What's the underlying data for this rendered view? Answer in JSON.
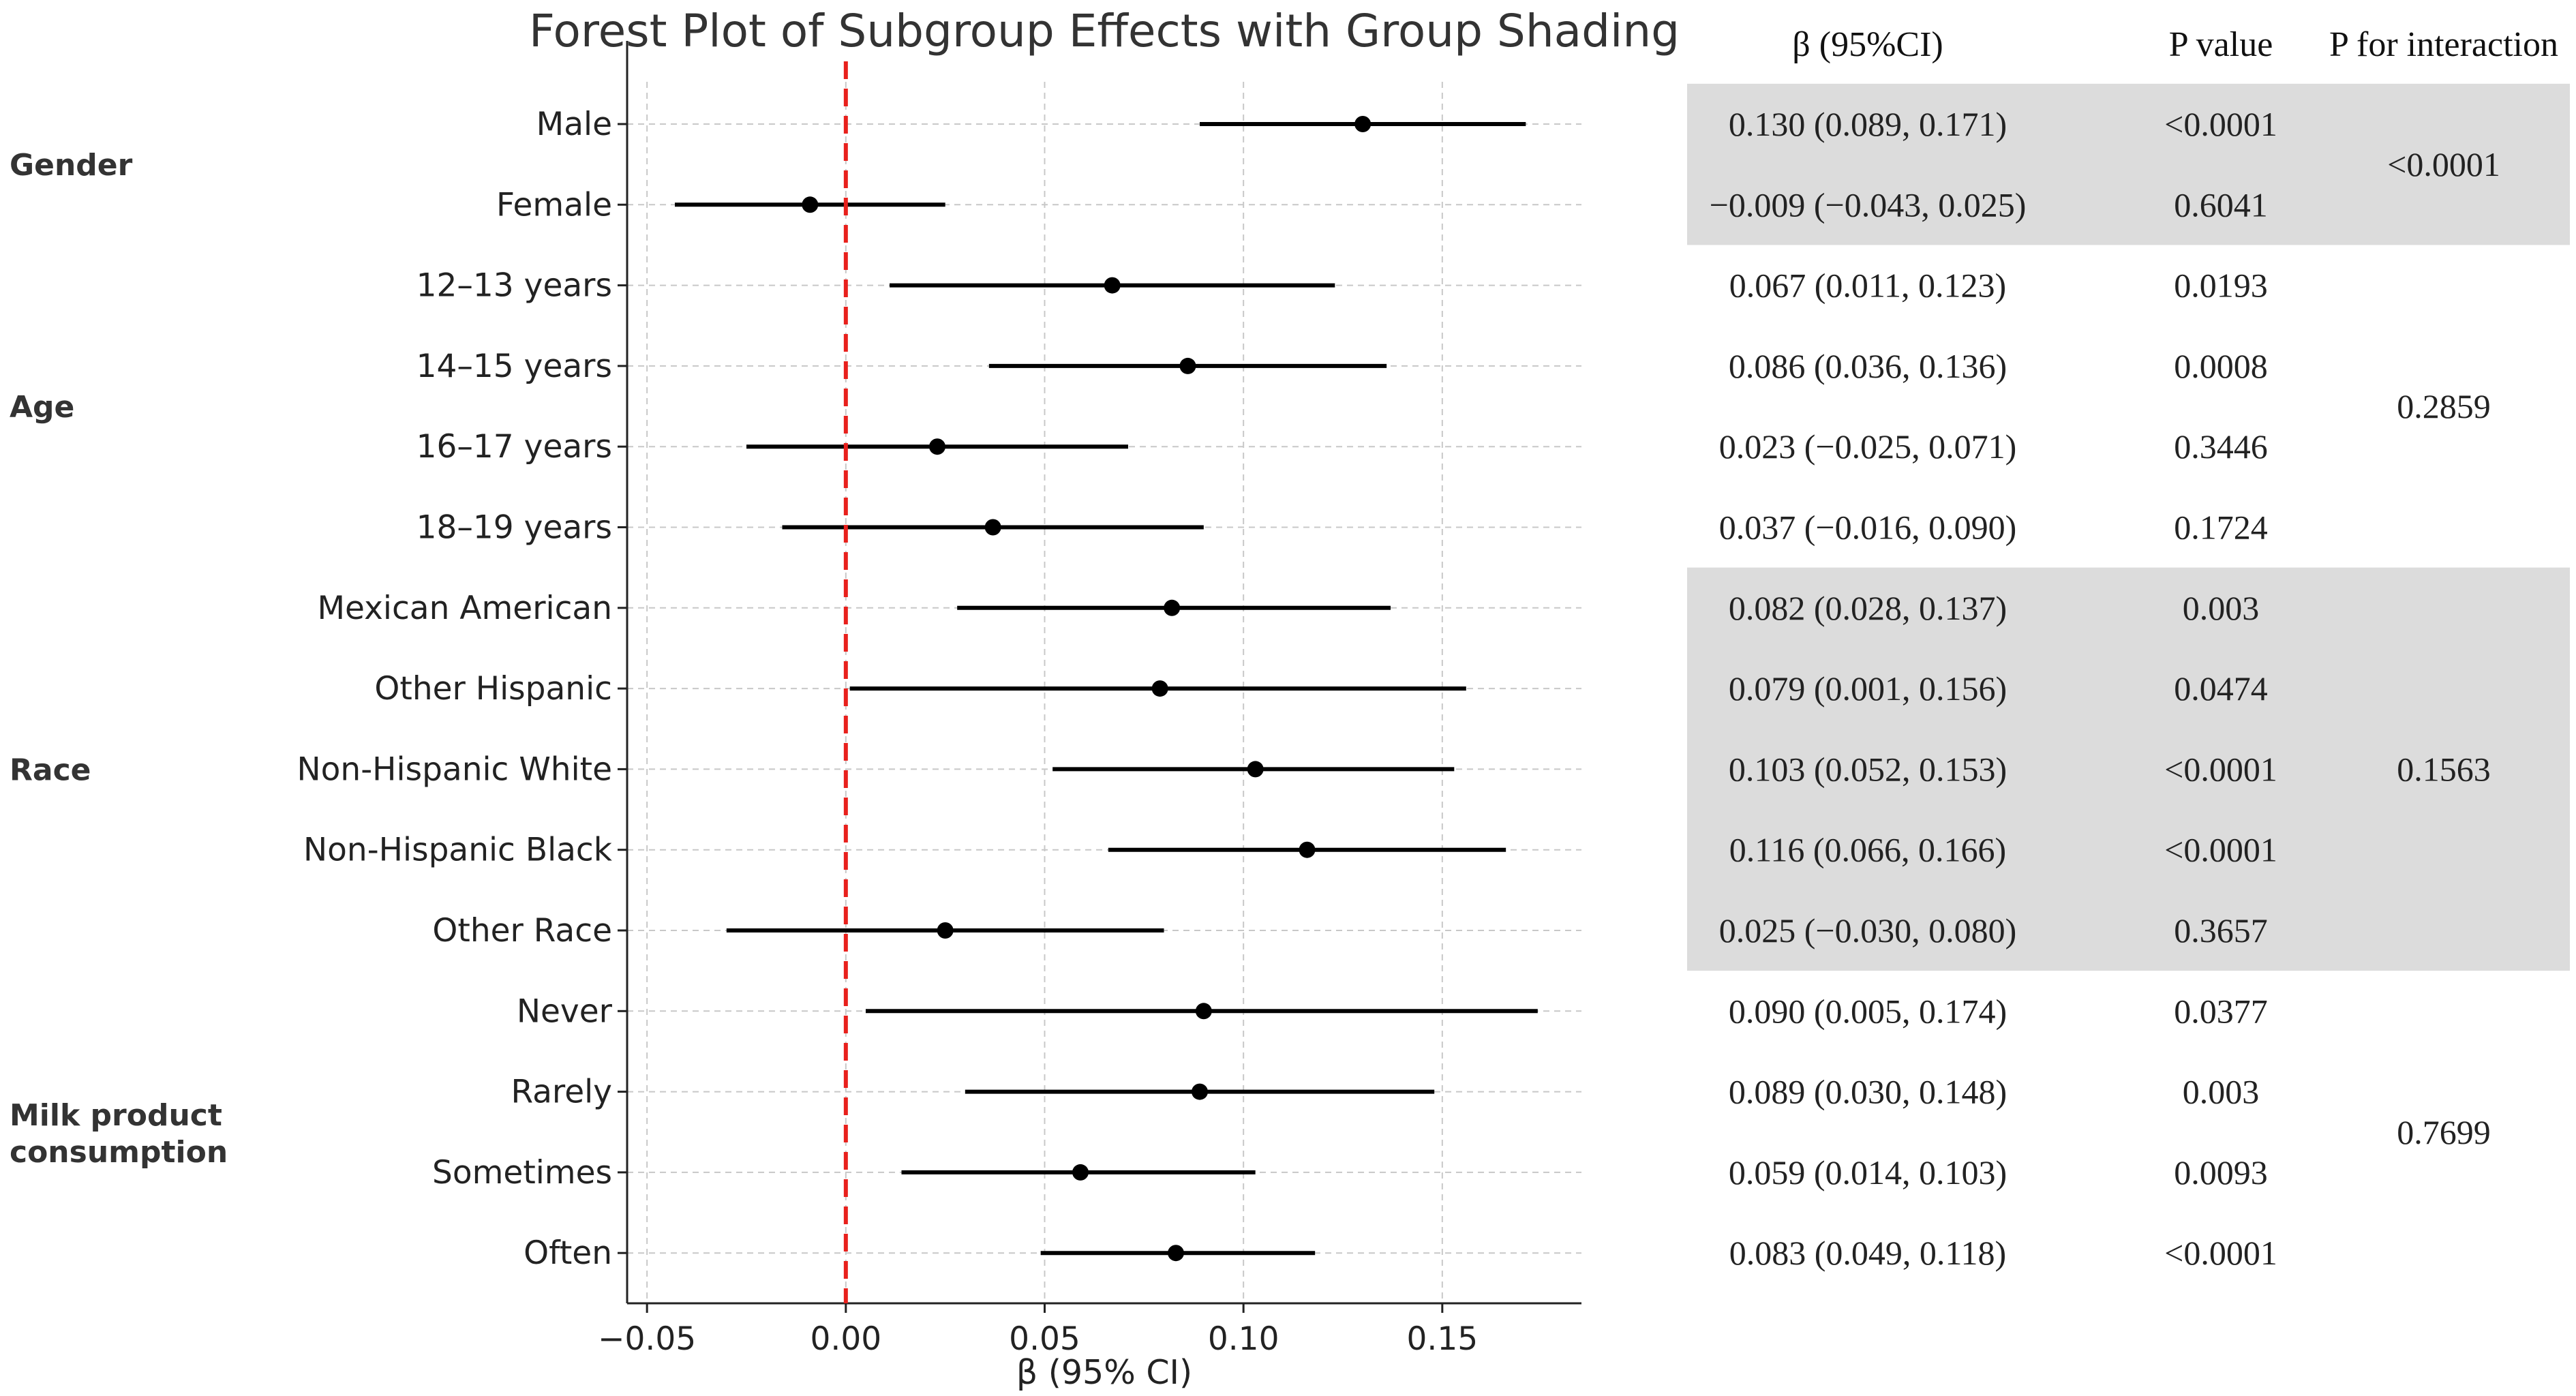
{
  "chart_data": {
    "type": "forest",
    "title": "Forest Plot of Subgroup Effects with Group Shading",
    "xlabel": "β (95% CI)",
    "xlim": [
      -0.055,
      0.185
    ],
    "xticks": [
      "−0.05",
      "0.00",
      "0.05",
      "0.10",
      "0.15"
    ],
    "xtick_values": [
      -0.05,
      0,
      0.05,
      0.1,
      0.15
    ],
    "reference_line": 0,
    "reference_color": "#e8201c",
    "shade_color": "#dcdcdc",
    "table_headers": {
      "beta": "β (95%CI)",
      "p": "P value",
      "p_interaction": "P for interaction"
    },
    "groups": [
      {
        "name": "Gender",
        "p_interaction": "<0.0001",
        "shaded": true,
        "rows": [
          {
            "label": "Male",
            "beta": 0.13,
            "lo": 0.089,
            "hi": 0.171,
            "text": "0.130 (0.089, 0.171)",
            "p": "<0.0001"
          },
          {
            "label": "Female",
            "beta": -0.009,
            "lo": -0.043,
            "hi": 0.025,
            "text": "−0.009 (−0.043, 0.025)",
            "p": "0.6041"
          }
        ]
      },
      {
        "name": "Age",
        "p_interaction": "0.2859",
        "shaded": false,
        "rows": [
          {
            "label": "12–13 years",
            "beta": 0.067,
            "lo": 0.011,
            "hi": 0.123,
            "text": "0.067 (0.011, 0.123)",
            "p": "0.0193"
          },
          {
            "label": "14–15 years",
            "beta": 0.086,
            "lo": 0.036,
            "hi": 0.136,
            "text": "0.086 (0.036, 0.136)",
            "p": "0.0008"
          },
          {
            "label": "16–17 years",
            "beta": 0.023,
            "lo": -0.025,
            "hi": 0.071,
            "text": "0.023 (−0.025, 0.071)",
            "p": "0.3446"
          },
          {
            "label": "18–19 years",
            "beta": 0.037,
            "lo": -0.016,
            "hi": 0.09,
            "text": "0.037 (−0.016, 0.090)",
            "p": "0.1724"
          }
        ]
      },
      {
        "name": "Race",
        "p_interaction": "0.1563",
        "shaded": true,
        "rows": [
          {
            "label": "Mexican American",
            "beta": 0.082,
            "lo": 0.028,
            "hi": 0.137,
            "text": "0.082 (0.028, 0.137)",
            "p": "0.003"
          },
          {
            "label": "Other Hispanic",
            "beta": 0.079,
            "lo": 0.001,
            "hi": 0.156,
            "text": "0.079 (0.001, 0.156)",
            "p": "0.0474"
          },
          {
            "label": "Non-Hispanic White",
            "beta": 0.103,
            "lo": 0.052,
            "hi": 0.153,
            "text": "0.103 (0.052, 0.153)",
            "p": "<0.0001"
          },
          {
            "label": "Non-Hispanic Black",
            "beta": 0.116,
            "lo": 0.066,
            "hi": 0.166,
            "text": "0.116 (0.066, 0.166)",
            "p": "<0.0001"
          },
          {
            "label": "Other Race",
            "beta": 0.025,
            "lo": -0.03,
            "hi": 0.08,
            "text": "0.025 (−0.030, 0.080)",
            "p": "0.3657"
          }
        ]
      },
      {
        "name": "Milk product consumption",
        "p_interaction": "0.7699",
        "shaded": false,
        "rows": [
          {
            "label": "Never",
            "beta": 0.09,
            "lo": 0.005,
            "hi": 0.174,
            "text": "0.090 (0.005, 0.174)",
            "p": "0.0377"
          },
          {
            "label": "Rarely",
            "beta": 0.089,
            "lo": 0.03,
            "hi": 0.148,
            "text": "0.089 (0.030, 0.148)",
            "p": "0.003"
          },
          {
            "label": "Sometimes",
            "beta": 0.059,
            "lo": 0.014,
            "hi": 0.103,
            "text": "0.059 (0.014, 0.103)",
            "p": "0.0093"
          },
          {
            "label": "Often",
            "beta": 0.083,
            "lo": 0.049,
            "hi": 0.118,
            "text": "0.083 (0.049, 0.118)",
            "p": "<0.0001"
          }
        ]
      }
    ]
  }
}
